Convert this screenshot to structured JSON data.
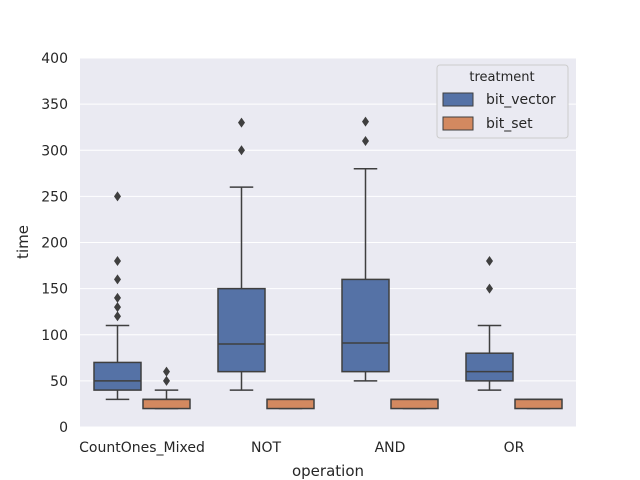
{
  "chart_data": {
    "type": "box",
    "xlabel": "operation",
    "ylabel": "time",
    "ylim": [
      0,
      400
    ],
    "yticks": [
      0,
      50,
      100,
      150,
      200,
      250,
      300,
      350,
      400
    ],
    "grid": true,
    "legend": {
      "title": "treatment",
      "position": "top-right"
    },
    "categories": [
      "CountOnes_Mixed",
      "NOT",
      "AND",
      "OR"
    ],
    "series": [
      {
        "name": "bit_vector",
        "color": "#5572a6",
        "boxes": [
          {
            "category": "CountOnes_Mixed",
            "whisker_low": 30,
            "q1": 40,
            "median": 50,
            "q3": 70,
            "whisker_high": 110,
            "outliers": [
              120,
              130,
              140,
              160,
              180,
              250
            ]
          },
          {
            "category": "NOT",
            "whisker_low": 40,
            "q1": 60,
            "median": 90,
            "q3": 150,
            "whisker_high": 260,
            "outliers": [
              300,
              330
            ]
          },
          {
            "category": "AND",
            "whisker_low": 50,
            "q1": 60,
            "median": 91,
            "q3": 160,
            "whisker_high": 280,
            "outliers": [
              310,
              331
            ]
          },
          {
            "category": "OR",
            "whisker_low": 40,
            "q1": 50,
            "median": 60,
            "q3": 80,
            "whisker_high": 110,
            "outliers": [
              150,
              180
            ]
          }
        ]
      },
      {
        "name": "bit_set",
        "color": "#d38960",
        "boxes": [
          {
            "category": "CountOnes_Mixed",
            "whisker_low": 20,
            "q1": 20,
            "median": 30,
            "q3": 30,
            "whisker_high": 40,
            "outliers": [
              50,
              60
            ]
          },
          {
            "category": "NOT",
            "whisker_low": 20,
            "q1": 20,
            "median": 30,
            "q3": 30,
            "whisker_high": 30,
            "outliers": []
          },
          {
            "category": "AND",
            "whisker_low": 20,
            "q1": 20,
            "median": 30,
            "q3": 30,
            "whisker_high": 30,
            "outliers": []
          },
          {
            "category": "OR",
            "whisker_low": 20,
            "q1": 20,
            "median": 30,
            "q3": 30,
            "whisker_high": 30,
            "outliers": []
          }
        ]
      }
    ]
  }
}
